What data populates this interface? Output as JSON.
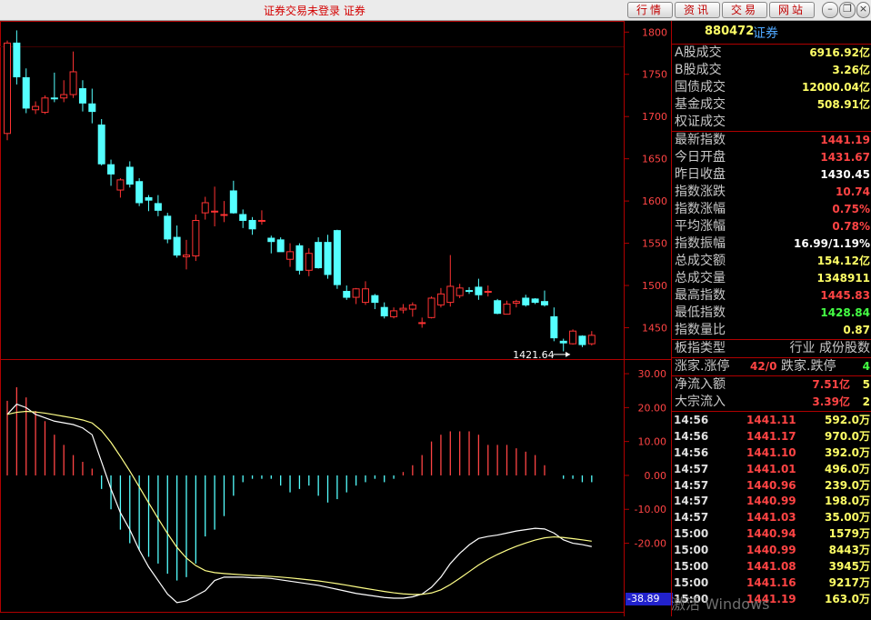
{
  "topbar": {
    "title": "证券交易未登录  证券",
    "buttons": [
      "行情",
      "资讯",
      "交易",
      "网站"
    ],
    "window_controls": [
      "minimize-icon",
      "restore-icon",
      "close-icon"
    ]
  },
  "header": {
    "code": "880472",
    "name": "证券"
  },
  "turnover": [
    {
      "label": "A股成交",
      "value": "6916.92亿"
    },
    {
      "label": "B股成交",
      "value": "3.26亿"
    },
    {
      "label": "国债成交",
      "value": "12000.04亿"
    },
    {
      "label": "基金成交",
      "value": "508.91亿"
    },
    {
      "label": "权证成交",
      "value": ""
    }
  ],
  "stats": [
    {
      "label": "最新指数",
      "value": "1441.19",
      "color": "#ff4444"
    },
    {
      "label": "今日开盘",
      "value": "1431.67",
      "color": "#ff4444"
    },
    {
      "label": "昨日收盘",
      "value": "1430.45",
      "color": "#ffffff"
    },
    {
      "label": "指数涨跌",
      "value": "10.74",
      "color": "#ff4444"
    },
    {
      "label": "指数涨幅",
      "value": "0.75%",
      "color": "#ff4444"
    },
    {
      "label": "平均涨幅",
      "value": "0.78%",
      "color": "#ff4444"
    },
    {
      "label": "指数振幅",
      "value": "16.99/1.19%",
      "color": "#ffffff"
    },
    {
      "label": "总成交额",
      "value": "154.12亿",
      "color": "#ffff66"
    },
    {
      "label": "总成交量",
      "value": "1348911",
      "color": "#ffff66"
    },
    {
      "label": "最高指数",
      "value": "1445.83",
      "color": "#ff4444"
    },
    {
      "label": "最低指数",
      "value": "1428.84",
      "color": "#44ff44"
    },
    {
      "label": "指数量比",
      "value": "0.87",
      "color": "#ffff66"
    }
  ],
  "sector": {
    "label": "板指类型",
    "value": "行业 成份股数"
  },
  "limits": {
    "up_label": "涨家.涨停",
    "up_value": "42/0",
    "down_label": "跌家.跌停",
    "down_value": "4"
  },
  "flows": [
    {
      "label": "净流入额",
      "value": "7.51亿",
      "extra": "5"
    },
    {
      "label": "大宗流入",
      "value": "3.39亿",
      "extra": "2"
    }
  ],
  "ticks": [
    {
      "time": "14:56",
      "price": "1441.11",
      "vol": "592.0万"
    },
    {
      "time": "14:56",
      "price": "1441.17",
      "vol": "970.0万"
    },
    {
      "time": "14:56",
      "price": "1441.10",
      "vol": "392.0万"
    },
    {
      "time": "14:57",
      "price": "1441.01",
      "vol": "496.0万"
    },
    {
      "time": "14:57",
      "price": "1440.96",
      "vol": "239.0万"
    },
    {
      "time": "14:57",
      "price": "1440.99",
      "vol": "198.0万"
    },
    {
      "time": "14:57",
      "price": "1441.03",
      "vol": "35.00万"
    },
    {
      "time": "15:00",
      "price": "1440.94",
      "vol": "1579万"
    },
    {
      "time": "15:00",
      "price": "1440.99",
      "vol": "8443万"
    },
    {
      "time": "15:00",
      "price": "1441.08",
      "vol": "3945万"
    },
    {
      "time": "15:00",
      "price": "1441.16",
      "vol": "9217万"
    },
    {
      "time": "15:00",
      "price": "1441.19",
      "vol": "163.0万"
    }
  ],
  "watermark": "激活 Windows",
  "chart_data": [
    {
      "type": "candlestick",
      "y_ticks": [
        1800,
        1750,
        1700,
        1650,
        1600,
        1550,
        1500,
        1450
      ],
      "ylim": [
        1415,
        1810
      ],
      "annotation": {
        "text": "1421.64",
        "value": 1421.64
      },
      "colors": {
        "up": "#ff3333",
        "down": "#54ffff"
      },
      "candles": [
        {
          "o": 1680,
          "h": 1790,
          "l": 1672,
          "c": 1787
        },
        {
          "o": 1787,
          "h": 1802,
          "l": 1738,
          "c": 1747
        },
        {
          "o": 1746,
          "h": 1757,
          "l": 1704,
          "c": 1710
        },
        {
          "o": 1708,
          "h": 1718,
          "l": 1703,
          "c": 1712
        },
        {
          "o": 1705,
          "h": 1725,
          "l": 1703,
          "c": 1722
        },
        {
          "o": 1722,
          "h": 1752,
          "l": 1717,
          "c": 1721
        },
        {
          "o": 1722,
          "h": 1743,
          "l": 1717,
          "c": 1726
        },
        {
          "o": 1726,
          "h": 1777,
          "l": 1722,
          "c": 1753
        },
        {
          "o": 1733,
          "h": 1743,
          "l": 1706,
          "c": 1716
        },
        {
          "o": 1715,
          "h": 1733,
          "l": 1692,
          "c": 1706
        },
        {
          "o": 1690,
          "h": 1697,
          "l": 1642,
          "c": 1644
        },
        {
          "o": 1643,
          "h": 1649,
          "l": 1618,
          "c": 1632
        },
        {
          "o": 1613,
          "h": 1627,
          "l": 1604,
          "c": 1625
        },
        {
          "o": 1640,
          "h": 1647,
          "l": 1616,
          "c": 1620
        },
        {
          "o": 1623,
          "h": 1627,
          "l": 1594,
          "c": 1598
        },
        {
          "o": 1604,
          "h": 1607,
          "l": 1588,
          "c": 1601
        },
        {
          "o": 1597,
          "h": 1607,
          "l": 1582,
          "c": 1589
        },
        {
          "o": 1582,
          "h": 1586,
          "l": 1550,
          "c": 1555
        },
        {
          "o": 1557,
          "h": 1571,
          "l": 1533,
          "c": 1536
        },
        {
          "o": 1534,
          "h": 1554,
          "l": 1519,
          "c": 1536
        },
        {
          "o": 1535,
          "h": 1584,
          "l": 1529,
          "c": 1577
        },
        {
          "o": 1586,
          "h": 1605,
          "l": 1578,
          "c": 1598
        },
        {
          "o": 1587,
          "h": 1617,
          "l": 1570,
          "c": 1588
        },
        {
          "o": 1584,
          "h": 1600,
          "l": 1575,
          "c": 1584
        },
        {
          "o": 1612,
          "h": 1624,
          "l": 1585,
          "c": 1586
        },
        {
          "o": 1584,
          "h": 1590,
          "l": 1568,
          "c": 1577
        },
        {
          "o": 1577,
          "h": 1581,
          "l": 1560,
          "c": 1567
        },
        {
          "o": 1577,
          "h": 1589,
          "l": 1572,
          "c": 1577
        },
        {
          "o": 1556,
          "h": 1559,
          "l": 1538,
          "c": 1552
        },
        {
          "o": 1554,
          "h": 1557,
          "l": 1541,
          "c": 1540
        },
        {
          "o": 1531,
          "h": 1550,
          "l": 1522,
          "c": 1540
        },
        {
          "o": 1547,
          "h": 1550,
          "l": 1513,
          "c": 1518
        },
        {
          "o": 1518,
          "h": 1544,
          "l": 1511,
          "c": 1538
        },
        {
          "o": 1551,
          "h": 1557,
          "l": 1520,
          "c": 1521
        },
        {
          "o": 1551,
          "h": 1560,
          "l": 1508,
          "c": 1513
        },
        {
          "o": 1565,
          "h": 1566,
          "l": 1496,
          "c": 1501
        },
        {
          "o": 1493,
          "h": 1500,
          "l": 1483,
          "c": 1486
        },
        {
          "o": 1486,
          "h": 1497,
          "l": 1478,
          "c": 1496
        },
        {
          "o": 1480,
          "h": 1505,
          "l": 1477,
          "c": 1496
        },
        {
          "o": 1488,
          "h": 1490,
          "l": 1472,
          "c": 1480
        },
        {
          "o": 1474,
          "h": 1480,
          "l": 1461,
          "c": 1464
        },
        {
          "o": 1463,
          "h": 1474,
          "l": 1461,
          "c": 1470
        },
        {
          "o": 1471,
          "h": 1478,
          "l": 1467,
          "c": 1473
        },
        {
          "o": 1472,
          "h": 1480,
          "l": 1463,
          "c": 1477
        },
        {
          "o": 1455,
          "h": 1462,
          "l": 1450,
          "c": 1456
        },
        {
          "o": 1462,
          "h": 1487,
          "l": 1461,
          "c": 1485
        },
        {
          "o": 1477,
          "h": 1497,
          "l": 1474,
          "c": 1490
        },
        {
          "o": 1480,
          "h": 1536,
          "l": 1475,
          "c": 1499
        },
        {
          "o": 1488,
          "h": 1502,
          "l": 1485,
          "c": 1497
        },
        {
          "o": 1494,
          "h": 1498,
          "l": 1490,
          "c": 1493
        },
        {
          "o": 1498,
          "h": 1508,
          "l": 1483,
          "c": 1489
        },
        {
          "o": 1492,
          "h": 1500,
          "l": 1487,
          "c": 1493
        },
        {
          "o": 1482,
          "h": 1484,
          "l": 1466,
          "c": 1467
        },
        {
          "o": 1466,
          "h": 1482,
          "l": 1466,
          "c": 1478
        },
        {
          "o": 1479,
          "h": 1483,
          "l": 1474,
          "c": 1481
        },
        {
          "o": 1485,
          "h": 1489,
          "l": 1475,
          "c": 1477
        },
        {
          "o": 1484,
          "h": 1485,
          "l": 1478,
          "c": 1480
        },
        {
          "o": 1481,
          "h": 1494,
          "l": 1475,
          "c": 1477
        },
        {
          "o": 1463,
          "h": 1474,
          "l": 1434,
          "c": 1438
        },
        {
          "o": 1434,
          "h": 1437,
          "l": 1422,
          "c": 1432
        },
        {
          "o": 1431,
          "h": 1448,
          "l": 1430,
          "c": 1446
        },
        {
          "o": 1440,
          "h": 1441,
          "l": 1427,
          "c": 1430
        },
        {
          "o": 1431,
          "h": 1446,
          "l": 1429,
          "c": 1441
        }
      ]
    },
    {
      "type": "macd",
      "y_ticks": [
        30.0,
        20.0,
        10.0,
        0.0,
        -10.0,
        -20.0
      ],
      "ylim": [
        -38.89,
        33.5
      ],
      "current_value": "-38.89",
      "colors": {
        "pos": "#ff4444",
        "neg": "#54ffff",
        "dif": "#ffffff",
        "dea": "#ffff88"
      },
      "histogram": [
        22,
        26,
        23,
        19,
        16,
        12,
        9,
        6,
        4,
        2,
        -4,
        -10,
        -16,
        -20,
        -22,
        -24,
        -26,
        -29,
        -31,
        -30,
        -26,
        -18,
        -16,
        -12,
        -6,
        -2,
        -1,
        -1,
        -1,
        -3,
        -5,
        -4,
        -3,
        -6,
        -8,
        -7,
        -5,
        -3,
        -2,
        -1,
        -2,
        -1,
        1,
        3,
        6,
        10,
        12,
        13,
        13,
        13,
        12,
        9,
        9,
        9,
        8,
        7,
        6,
        3,
        0,
        -1,
        -1,
        -2,
        -2
      ],
      "dif": [
        18,
        21,
        20,
        18,
        17,
        16,
        15.5,
        15,
        14,
        12,
        4,
        -4,
        -11,
        -16,
        -22,
        -27,
        -31,
        -35,
        -37.5,
        -37,
        -35.5,
        -34,
        -31,
        -30,
        -30,
        -30,
        -30.2,
        -30.2,
        -30.4,
        -30.8,
        -31.2,
        -31.6,
        -32,
        -32.4,
        -33,
        -33.6,
        -34.2,
        -34.8,
        -35.2,
        -35.6,
        -36,
        -36.2,
        -36.2,
        -35.8,
        -35,
        -33,
        -30,
        -26,
        -23,
        -20.5,
        -18.6,
        -18,
        -17.6,
        -17,
        -16.4,
        -16,
        -15.6,
        -15.8,
        -17,
        -19,
        -20,
        -20.4,
        -21
      ]
    }
  ]
}
